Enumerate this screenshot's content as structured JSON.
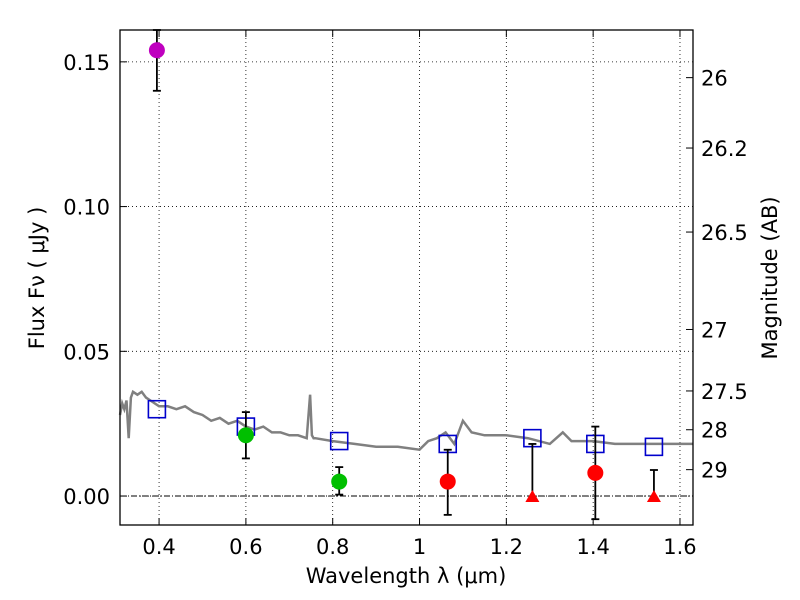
{
  "chart_data": {
    "type": "scatter",
    "xlabel": "Wavelength  λ (μm)",
    "ylabel": "Flux  Fν  ( μJy )",
    "ylabel_right": "Magnitude (AB)",
    "xlim": [
      0.31,
      1.63
    ],
    "ylim": [
      -0.01,
      0.161
    ],
    "grid": true,
    "x_ticks": [
      {
        "value": 0.4,
        "label": "0.4"
      },
      {
        "value": 0.6,
        "label": "0.6"
      },
      {
        "value": 0.8,
        "label": "0.8"
      },
      {
        "value": 1.0,
        "label": "1"
      },
      {
        "value": 1.2,
        "label": "1.2"
      },
      {
        "value": 1.4,
        "label": "1.4"
      },
      {
        "value": 1.6,
        "label": "1.6"
      }
    ],
    "y_ticks": [
      {
        "value": 0.0,
        "label": "0.00"
      },
      {
        "value": 0.05,
        "label": "0.05"
      },
      {
        "value": 0.1,
        "label": "0.10"
      },
      {
        "value": 0.15,
        "label": "0.15"
      }
    ],
    "mag_ticks": [
      {
        "mag": 26,
        "label": "26"
      },
      {
        "mag": 26.2,
        "label": "26.2"
      },
      {
        "mag": 26.5,
        "label": "26.5"
      },
      {
        "mag": 27,
        "label": "27"
      },
      {
        "mag": 27.5,
        "label": "27.5"
      },
      {
        "mag": 28,
        "label": "28"
      },
      {
        "mag": 29,
        "label": "29"
      }
    ],
    "model_spectrum": {
      "color": "#808080",
      "x": [
        0.31,
        0.315,
        0.32,
        0.325,
        0.33,
        0.335,
        0.34,
        0.35,
        0.36,
        0.37,
        0.38,
        0.39,
        0.4,
        0.42,
        0.44,
        0.46,
        0.48,
        0.5,
        0.52,
        0.54,
        0.56,
        0.58,
        0.6,
        0.62,
        0.64,
        0.66,
        0.68,
        0.7,
        0.72,
        0.74,
        0.748,
        0.752,
        0.756,
        0.76,
        0.8,
        0.85,
        0.9,
        0.95,
        1.0,
        1.02,
        1.04,
        1.06,
        1.08,
        1.1,
        1.12,
        1.15,
        1.2,
        1.25,
        1.3,
        1.33,
        1.35,
        1.4,
        1.45,
        1.5,
        1.55,
        1.6,
        1.63
      ],
      "y": [
        0.028,
        0.032,
        0.03,
        0.033,
        0.02,
        0.034,
        0.036,
        0.035,
        0.036,
        0.034,
        0.033,
        0.032,
        0.031,
        0.031,
        0.03,
        0.031,
        0.029,
        0.028,
        0.026,
        0.027,
        0.025,
        0.026,
        0.024,
        0.023,
        0.024,
        0.022,
        0.022,
        0.021,
        0.021,
        0.02,
        0.035,
        0.021,
        0.02,
        0.02,
        0.019,
        0.018,
        0.017,
        0.017,
        0.016,
        0.019,
        0.02,
        0.022,
        0.018,
        0.026,
        0.022,
        0.021,
        0.021,
        0.02,
        0.018,
        0.022,
        0.019,
        0.019,
        0.018,
        0.018,
        0.018,
        0.018,
        0.018
      ]
    },
    "model_photometry": {
      "color": "#0000cc",
      "x": [
        0.395,
        0.6,
        0.815,
        1.065,
        1.26,
        1.405,
        1.54
      ],
      "y": [
        0.03,
        0.024,
        0.019,
        0.018,
        0.02,
        0.018,
        0.017
      ]
    },
    "observed": [
      {
        "x": 0.395,
        "y": 0.154,
        "yerr_low": 0.14,
        "yerr_high": 0.161,
        "marker": "circle",
        "color": "#bf00bf"
      },
      {
        "x": 0.6,
        "y": 0.021,
        "yerr_low": 0.013,
        "yerr_high": 0.029,
        "marker": "circle",
        "color": "#00bf00"
      },
      {
        "x": 0.815,
        "y": 0.005,
        "yerr_low": 0.0005,
        "yerr_high": 0.01,
        "marker": "circle",
        "color": "#00bf00"
      },
      {
        "x": 1.065,
        "y": 0.005,
        "yerr_low": -0.0065,
        "yerr_high": 0.016,
        "marker": "circle",
        "color": "#ff0000"
      },
      {
        "x": 1.26,
        "y": 0.0,
        "yerr_low": 0.0,
        "yerr_high": 0.018,
        "marker": "triangle",
        "color": "#ff0000"
      },
      {
        "x": 1.405,
        "y": 0.008,
        "yerr_low": -0.008,
        "yerr_high": 0.024,
        "marker": "circle",
        "color": "#ff0000"
      },
      {
        "x": 1.54,
        "y": 0.0,
        "yerr_low": 0.0,
        "yerr_high": 0.009,
        "marker": "triangle",
        "color": "#ff0000"
      }
    ]
  }
}
